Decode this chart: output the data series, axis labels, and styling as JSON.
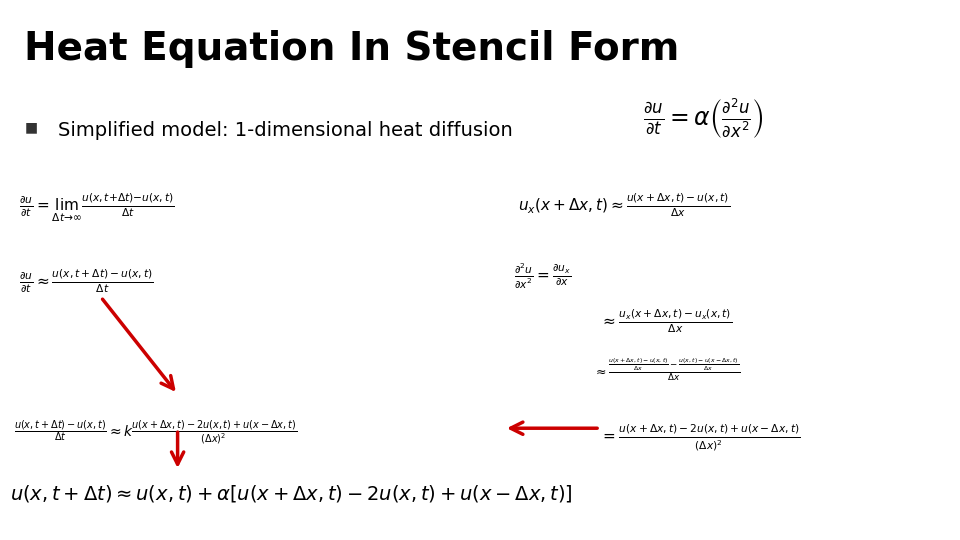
{
  "title": "Heat Equation In Stencil Form",
  "slide_bg": "#ffffff",
  "title_color": "#000000",
  "title_fontsize": 28,
  "subtitle_text": "Simplified model: 1-dimensional heat diffusion",
  "subtitle_fontsize": 14,
  "top_bar_color": "#b8cce4",
  "equation_color": "#000000",
  "arrow_color": "#cc0000",
  "eq_header": "\\frac{\\partial u}{\\partial t} = \\alpha \\left( \\frac{\\partial^2 u}{\\partial x^2} \\right)",
  "eq_left1": "\\frac{\\partial u}{\\partial t} = \\lim_{\\Delta t \\to \\infty} \\frac{u(x,t+\\Delta t)-u(x,t)}{\\Delta t}",
  "eq_left2": "\\frac{\\partial u}{\\partial t} \\approx \\frac{u(x,t+\\Delta t)-u(x,t)}{\\Delta t}",
  "eq_left3": "\\frac{u(x,t+\\Delta t)-u(x,t)}{\\Delta t} \\approx k\\frac{u(x+\\Delta x,t)-2u(x,t)+u(x-\\Delta x,t)}{(\\Delta x)^2}",
  "eq_left4": "u(x,t+\\Delta t) \\approx u(x,t) + \\alpha\\left[u(x+\\Delta x,t) - 2u(x,t) + u(x-\\Delta x,t)\\right]",
  "eq_right1": "u_x(x+\\Delta x,t) \\approx \\frac{u(x+\\Delta x,t)-u(x,t)}{\\Delta x}",
  "eq_right2a": "\\frac{\\partial^2 u}{\\partial x^2} = \\frac{\\partial u_x}{\\partial x}",
  "eq_right2b": "\\approx \\frac{u_x(x+\\Delta x,t)-u_x(x,t)}{\\Delta x}",
  "eq_right2c": "\\approx \\frac{\\frac{u(x+\\Delta x,t)-u(x,t)}{\\Delta x} - \\frac{u(x,t)-u(x-\\Delta x,t)}{\\Delta x}}{\\Delta x}",
  "eq_right2d": "= \\frac{u(x+\\Delta x,t)-2u(x,t)+u(x-\\Delta x,t)}{(\\Delta x)^2}"
}
